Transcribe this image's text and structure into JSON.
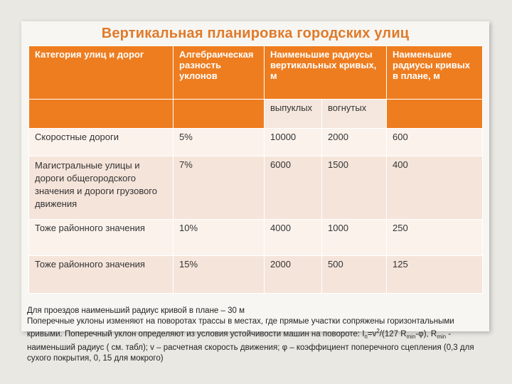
{
  "title": "Вертикальная планировка городских улиц",
  "table": {
    "headers": {
      "category": "Категория улиц и дорог",
      "grade": "Алгебраическая разность уклонов",
      "vertical": "Наименьшие радиусы вертикальных кривых, м",
      "plan": "Наименьшие радиусы кривых в плане, м"
    },
    "subheaders": {
      "convex": "выпуклых",
      "concave": "вогнутых"
    },
    "rows": [
      {
        "category": "Скоростные дороги",
        "grade": "5%",
        "convex": "10000",
        "concave": "2000",
        "plan": "600"
      },
      {
        "category": "Магистральные улицы и дороги общегородского значения и дороги грузового движения",
        "grade": "7%",
        "convex": "6000",
        "concave": "1500",
        "plan": "400"
      },
      {
        "category": "Тоже районного значения",
        "grade": "10%",
        "convex": "4000",
        "concave": "1000",
        "plan": "250"
      },
      {
        "category": "Тоже районного значения",
        "grade": "15%",
        "convex": "2000",
        "concave": "500",
        "plan": "125"
      }
    ]
  },
  "footnote": {
    "line1": "Для проездов наименьший радиус кривой в плане – 30 м",
    "line2_start": "Поперечные уклоны изменяют на поворотах трассы в местах, где прямые участки сопряжены горизонтальными кривыми. Поперечный уклон определяют из условия устойчивости машин на повороте:  I",
    "sub_n": "п",
    "eq": "=v",
    "sup_2": "2",
    "eq2": "/(127 R",
    "sub_min": "min",
    "eq3": "-φ), R",
    "sub_min2": "min",
    "line2_end": " - наименьший радиус ( см. табл); v – расчетная скорость движения; φ – коэффициент поперечного сцепления (0,3 для сухого покрытия, 0, 15 для мокрого)"
  }
}
